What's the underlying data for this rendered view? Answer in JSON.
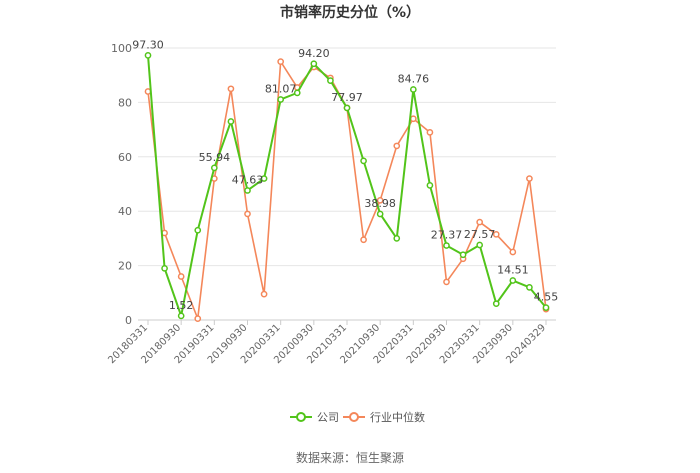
{
  "chart_data": {
    "type": "line",
    "title": "市销率历史分位（%）",
    "x_tick_labels": [
      "20180331",
      "20180930",
      "20190331",
      "20190930",
      "20200331",
      "20200930",
      "20210331",
      "20210930",
      "20220331",
      "20220930",
      "20230331",
      "20230930",
      "20240329"
    ],
    "ylim": [
      0,
      100
    ],
    "y_ticks": [
      0,
      20,
      40,
      60,
      80,
      100
    ],
    "grid": true,
    "legend_position": "bottom",
    "series": [
      {
        "name": "公司",
        "color": "#52c41a",
        "values": [
          97.3,
          19.0,
          1.52,
          33.0,
          55.94,
          73.0,
          47.63,
          52.0,
          81.07,
          83.5,
          94.2,
          88.0,
          77.97,
          58.5,
          38.98,
          30.0,
          84.76,
          49.5,
          27.37,
          24.0,
          27.57,
          6.0,
          14.51,
          12.0,
          4.55
        ]
      },
      {
        "name": "行业中位数",
        "color": "#f4875a",
        "values": [
          84.0,
          32.0,
          16.0,
          0.5,
          52.0,
          85.0,
          39.0,
          9.5,
          95.0,
          85.5,
          93.0,
          89.0,
          78.0,
          29.5,
          44.0,
          64.0,
          74.0,
          69.0,
          14.0,
          22.5,
          36.0,
          31.5,
          25.0,
          52.0,
          4.0
        ]
      }
    ],
    "data_labels": [
      {
        "series": 0,
        "index": 0,
        "text": "97.30"
      },
      {
        "series": 0,
        "index": 2,
        "text": "1.52"
      },
      {
        "series": 0,
        "index": 4,
        "text": "55.94"
      },
      {
        "series": 0,
        "index": 6,
        "text": "47.63"
      },
      {
        "series": 0,
        "index": 8,
        "text": "81.07"
      },
      {
        "series": 0,
        "index": 10,
        "text": "94.20"
      },
      {
        "series": 0,
        "index": 12,
        "text": "77.97"
      },
      {
        "series": 0,
        "index": 14,
        "text": "38.98"
      },
      {
        "series": 0,
        "index": 16,
        "text": "84.76"
      },
      {
        "series": 0,
        "index": 18,
        "text": "27.37"
      },
      {
        "series": 0,
        "index": 20,
        "text": "27.57"
      },
      {
        "series": 0,
        "index": 22,
        "text": "14.51"
      },
      {
        "series": 0,
        "index": 24,
        "text": "4.55"
      }
    ]
  },
  "source_text": "数据来源：恒生聚源"
}
